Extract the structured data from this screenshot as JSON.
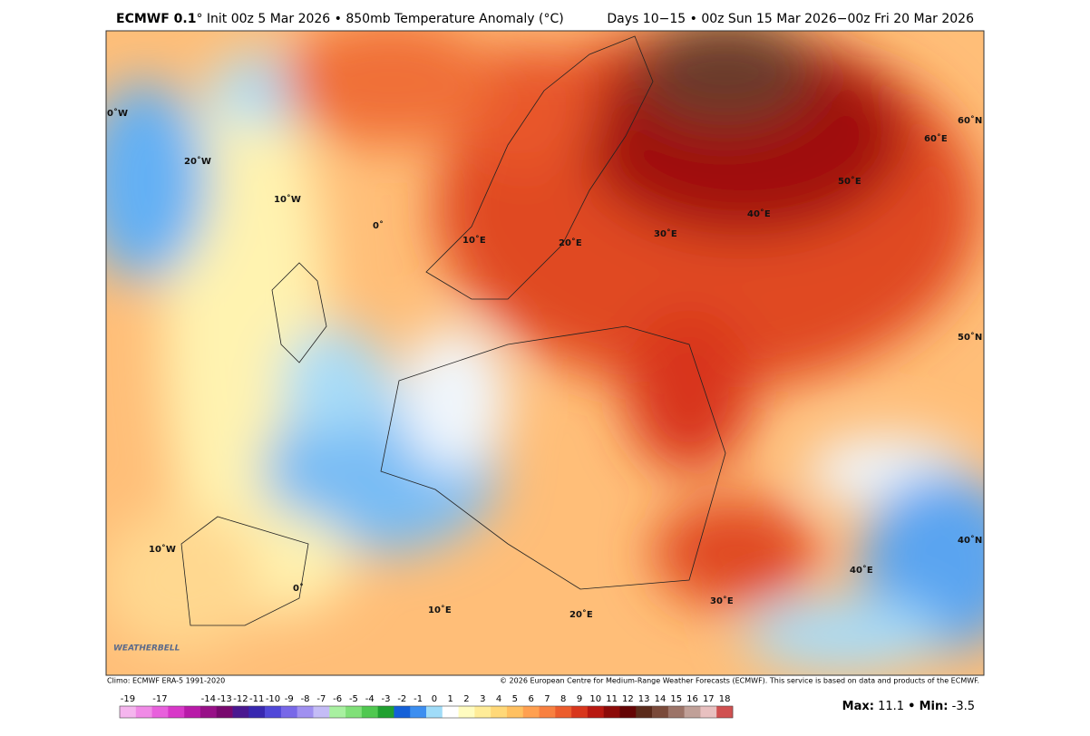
{
  "header": {
    "model": "ECMWF 0.1",
    "description": "° Init 00z 5 Mar 2026 • 850mb Temperature Anomaly (°C)",
    "valid": "Days 10−15 • 00z Sun 15 Mar 2026−00z Fri 20 Mar 2026"
  },
  "map": {
    "labels": [
      "0˚W",
      "20˚W",
      "10˚W",
      "0˚",
      "10˚E",
      "20˚E",
      "30˚E",
      "40˚E",
      "50˚E",
      "60˚E",
      "60˚N",
      "50˚N",
      "40˚N",
      "10˚W",
      "0˚",
      "10˚E",
      "20˚E",
      "30˚E",
      "40˚E"
    ],
    "logo": "WEATHERBELL"
  },
  "footer": {
    "climo": "Climo: ECMWF ERA-5 1991-2020",
    "copyright": "© 2026 European Centre for Medium-Range Weather Forecasts (ECMWF). This service is based on data and products of the ECMWF."
  },
  "colorbar": {
    "ticks": [
      -19,
      -17,
      -14,
      -13,
      -12,
      -11,
      -10,
      -9,
      -8,
      -7,
      -6,
      -5,
      -4,
      -3,
      -2,
      -1,
      0,
      1,
      2,
      3,
      4,
      5,
      6,
      7,
      8,
      9,
      10,
      11,
      12,
      13,
      14,
      15,
      16,
      17,
      18
    ],
    "colors": [
      "#f5b5ee",
      "#f08ae6",
      "#e860dc",
      "#d838c8",
      "#b81aa8",
      "#981088",
      "#78086e",
      "#4a1890",
      "#3828b0",
      "#5048d8",
      "#7868e8",
      "#a090f0",
      "#c4bcf6",
      "#a8f0a0",
      "#80e078",
      "#50c850",
      "#20a030",
      "#1460d8",
      "#3c8ef0",
      "#a0dcf8",
      "#ffffff",
      "#fffcc0",
      "#ffec98",
      "#ffd878",
      "#ffc060",
      "#ffa050",
      "#f88040",
      "#ec5c2c",
      "#d8361c",
      "#b81810",
      "#8c0a08",
      "#640404",
      "#5a2a1a",
      "#7a4a3a",
      "#9c7468",
      "#c0a098",
      "#e8c0c0",
      "#d05050"
    ]
  },
  "stats": {
    "max_label": "Max:",
    "max": 11.1,
    "separator": "•",
    "min_label": "Min:",
    "min": -3.5
  }
}
